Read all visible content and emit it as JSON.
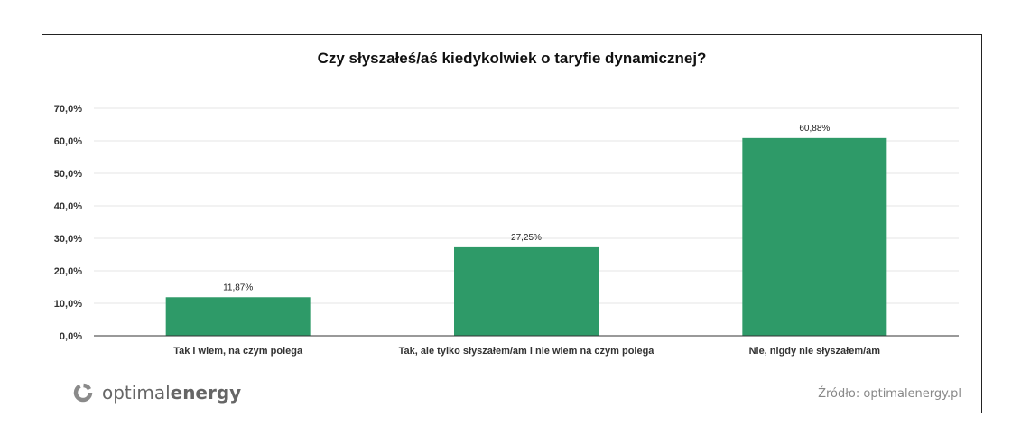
{
  "chart_data": {
    "type": "bar",
    "title": "Czy słyszałeś/aś kiedykolwiek o taryfie dynamicznej?",
    "categories": [
      "Tak i wiem, na czym polega",
      "Tak, ale tylko słyszałem/am i nie wiem na czym polega",
      "Nie, nigdy nie słyszałem/am"
    ],
    "values": [
      11.87,
      27.25,
      60.88
    ],
    "value_labels": [
      "11,87%",
      "27,25%",
      "60,88%"
    ],
    "ylim": [
      0,
      70
    ],
    "yticks": [
      0,
      10,
      20,
      30,
      40,
      50,
      60,
      70
    ],
    "ytick_labels": [
      "0,0%",
      "10,0%",
      "20,0%",
      "30,0%",
      "40,0%",
      "50,0%",
      "60,0%",
      "70,0%"
    ],
    "xlabel": "",
    "ylabel": "",
    "grid": true,
    "bar_color": "#2e9a68",
    "grid_color": "#e6e6e6"
  },
  "logo": {
    "part1": "optimal",
    "part2": "energy",
    "icon": "optimalenergy-circle-icon"
  },
  "source": "Źródło: optimalenergy.pl"
}
